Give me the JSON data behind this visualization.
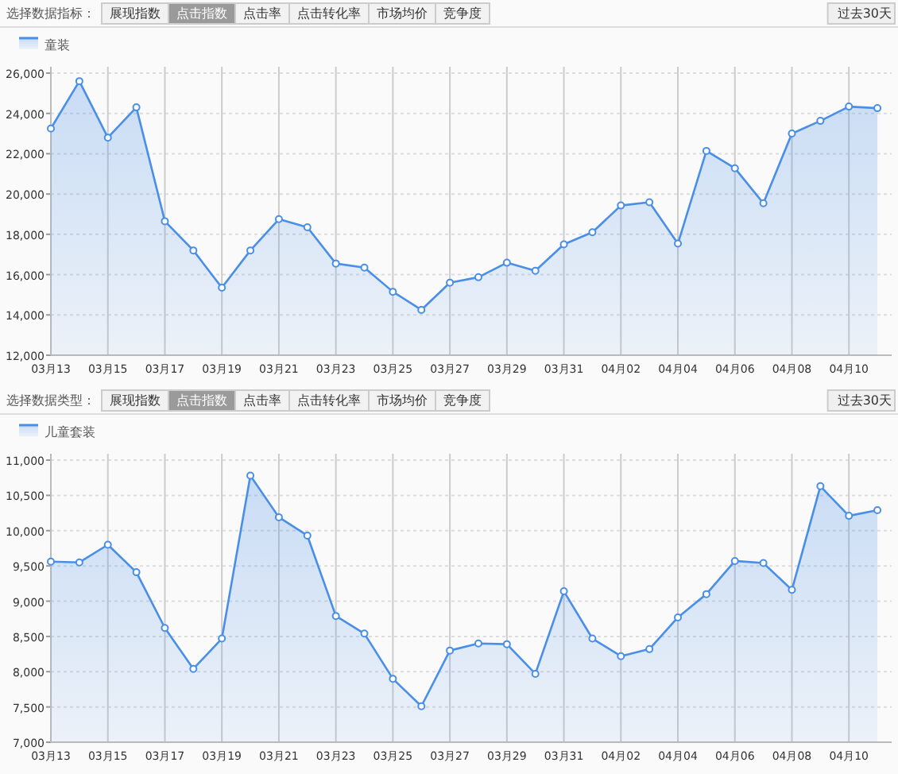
{
  "chart_data": [
    {
      "type": "area",
      "annotations": [
        "选择数据指标：",
        "展现指数",
        "点击指数",
        "点击率",
        "点击转化率",
        "市场均价",
        "竞争度",
        "过去30天"
      ],
      "categories": [
        "03月13",
        null,
        "03月15",
        null,
        "03月17",
        null,
        "03月19",
        null,
        "03月21",
        null,
        "03月23",
        null,
        "03月25",
        null,
        "03月27",
        null,
        "03月29",
        null,
        "03月31",
        null,
        "04月02",
        null,
        "04月04",
        null,
        "04月06",
        null,
        "04月08",
        null,
        "04月10",
        null
      ],
      "series": [
        {
          "name": "童装",
          "color": "#4a8fe7",
          "values": [
            23250,
            25600,
            22800,
            24300,
            18650,
            17200,
            15350,
            17200,
            18750,
            18350,
            16550,
            16350,
            15150,
            14250,
            15600,
            15870,
            16590,
            16190,
            17500,
            18100,
            19430,
            19590,
            17540,
            22140,
            21280,
            19540,
            23000,
            23630,
            24340,
            24260
          ]
        }
      ],
      "ylim": [
        12000,
        26000
      ],
      "yticks": [
        {
          "value": 12000,
          "label": "12,000"
        },
        {
          "value": 14000,
          "label": "14,000"
        },
        {
          "value": 16000,
          "label": "16,000"
        },
        {
          "value": 18000,
          "label": "18,000"
        },
        {
          "value": 20000,
          "label": "20,000"
        },
        {
          "value": 22000,
          "label": "22,000"
        },
        {
          "value": 24000,
          "label": "24,000"
        },
        {
          "value": 26000,
          "label": "26,000"
        }
      ],
      "grid": true,
      "legend": "top left",
      "marker": "circle",
      "line_style": "solid"
    },
    {
      "type": "area",
      "annotations": [
        "选择数据类型：",
        "展现指数",
        "点击指数",
        "点击率",
        "点击转化率",
        "市场均价",
        "竞争度",
        "过去30天"
      ],
      "categories": [
        "03月13",
        null,
        "03月15",
        null,
        "03月17",
        null,
        "03月19",
        null,
        "03月21",
        null,
        "03月23",
        null,
        "03月25",
        null,
        "03月27",
        null,
        "03月29",
        null,
        "03月31",
        null,
        "04月02",
        null,
        "04月04",
        null,
        "04月06",
        null,
        "04月08",
        null,
        "04月10",
        null
      ],
      "series": [
        {
          "name": "儿童套装",
          "color": "#4a8fe7",
          "values": [
            9560,
            9550,
            9800,
            9410,
            8620,
            8040,
            8470,
            10780,
            10190,
            9930,
            8790,
            8540,
            7900,
            7510,
            8300,
            8400,
            8390,
            7970,
            9140,
            8470,
            8220,
            8320,
            8770,
            9100,
            9570,
            9540,
            9160,
            10630,
            10210,
            10290
          ]
        }
      ],
      "ylim": [
        7000,
        11000
      ],
      "yticks": [
        {
          "value": 7000,
          "label": "7,000"
        },
        {
          "value": 7500,
          "label": "7,500"
        },
        {
          "value": 8000,
          "label": "8,000"
        },
        {
          "value": 8500,
          "label": "8,500"
        },
        {
          "value": 9000,
          "label": "9,000"
        },
        {
          "value": 9500,
          "label": "9,500"
        },
        {
          "value": 10000,
          "label": "10,000"
        },
        {
          "value": 10500,
          "label": "10,500"
        },
        {
          "value": 11000,
          "label": "11,000"
        }
      ],
      "grid": true,
      "legend": "top left",
      "marker": "circle",
      "line_style": "solid"
    }
  ]
}
